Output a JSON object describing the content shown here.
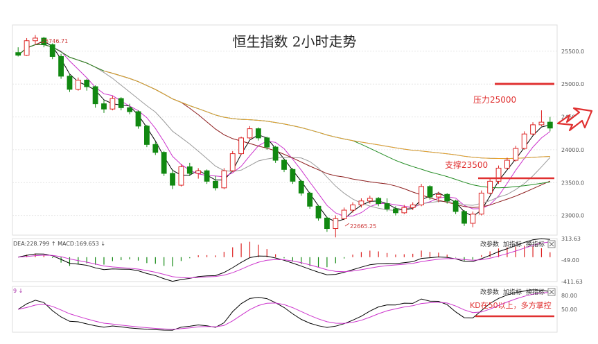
{
  "chart_data": {
    "type": "candlestick",
    "title": "恒生指数 2小时走势",
    "main": {
      "ylim": [
        22700,
        25900
      ],
      "yticks": [
        23000,
        23500,
        24000,
        24500,
        25000,
        25500
      ],
      "ytick_labels": [
        "23000.0",
        "23500.0",
        "24000.0",
        "24500.0",
        "25000.0",
        "25500.0"
      ],
      "high_label": "25746.71",
      "low_label": "22665.25",
      "annotations": [
        {
          "text": "压力25000",
          "value": 25000
        },
        {
          "text": "支撑23500",
          "value": 23500
        }
      ],
      "candles": [
        [
          25480,
          25560,
          25420,
          25440
        ],
        [
          25440,
          25700,
          25430,
          25660
        ],
        [
          25660,
          25746.71,
          25600,
          25700
        ],
        [
          25700,
          25720,
          25560,
          25600
        ],
        [
          25600,
          25620,
          25380,
          25420
        ],
        [
          25420,
          25460,
          25080,
          25120
        ],
        [
          25120,
          25160,
          24880,
          24920
        ],
        [
          24920,
          25100,
          24900,
          25060
        ],
        [
          25060,
          25080,
          24900,
          24960
        ],
        [
          24960,
          24980,
          24640,
          24700
        ],
        [
          24700,
          24760,
          24560,
          24620
        ],
        [
          24620,
          24820,
          24600,
          24780
        ],
        [
          24780,
          24800,
          24600,
          24640
        ],
        [
          24640,
          24700,
          24540,
          24580
        ],
        [
          24580,
          24600,
          24320,
          24360
        ],
        [
          24360,
          24380,
          24040,
          24080
        ],
        [
          24080,
          24120,
          23920,
          23960
        ],
        [
          23960,
          23980,
          23600,
          23640
        ],
        [
          23640,
          23700,
          23400,
          23460
        ],
        [
          23460,
          23780,
          23440,
          23740
        ],
        [
          23740,
          23800,
          23600,
          23640
        ],
        [
          23640,
          23720,
          23560,
          23680
        ],
        [
          23680,
          23700,
          23480,
          23520
        ],
        [
          23520,
          23600,
          23380,
          23420
        ],
        [
          23420,
          23720,
          23400,
          23680
        ],
        [
          23680,
          23980,
          23660,
          23940
        ],
        [
          23940,
          24200,
          23920,
          24180
        ],
        [
          24180,
          24360,
          24160,
          24320
        ],
        [
          24320,
          24340,
          24140,
          24180
        ],
        [
          24180,
          24200,
          24000,
          24040
        ],
        [
          24040,
          24060,
          23800,
          23840
        ],
        [
          23840,
          23860,
          23660,
          23700
        ],
        [
          23700,
          23720,
          23480,
          23520
        ],
        [
          23520,
          23540,
          23300,
          23340
        ],
        [
          23340,
          23360,
          23100,
          23140
        ],
        [
          23140,
          23160,
          22920,
          22960
        ],
        [
          22960,
          22980,
          22750,
          22800
        ],
        [
          22800,
          23000,
          22665.25,
          22950
        ],
        [
          22950,
          23120,
          22930,
          23080
        ],
        [
          23080,
          23200,
          23040,
          23160
        ],
        [
          23160,
          23260,
          23120,
          23220
        ],
        [
          23220,
          23300,
          23180,
          23260
        ],
        [
          23260,
          23280,
          23140,
          23180
        ],
        [
          23180,
          23260,
          23060,
          23100
        ],
        [
          23100,
          23140,
          23000,
          23040
        ],
        [
          23040,
          23160,
          23020,
          23120
        ],
        [
          23120,
          23200,
          23080,
          23160
        ],
        [
          23160,
          23480,
          23140,
          23440
        ],
        [
          23440,
          23460,
          23240,
          23280
        ],
        [
          23280,
          23360,
          23200,
          23320
        ],
        [
          23320,
          23340,
          23180,
          23220
        ],
        [
          23220,
          23240,
          23020,
          23060
        ],
        [
          23060,
          23080,
          22840,
          22880
        ],
        [
          22880,
          23060,
          22820,
          23020
        ],
        [
          23020,
          23380,
          23000,
          23340
        ],
        [
          23340,
          23560,
          23320,
          23520
        ],
        [
          23520,
          23760,
          23480,
          23720
        ],
        [
          23720,
          23880,
          23700,
          23840
        ],
        [
          23840,
          24060,
          23820,
          24020
        ],
        [
          24020,
          24280,
          24000,
          24240
        ],
        [
          24240,
          24420,
          24220,
          24380
        ],
        [
          24380,
          24600,
          24360,
          24420
        ],
        [
          24420,
          24500,
          24280,
          24330
        ]
      ],
      "ma_colors": [
        "#000000",
        "#cc33cc",
        "#999999",
        "#8b1a1a",
        "#228b22",
        "#1e90ff",
        "#f0a020"
      ]
    },
    "macd": {
      "label": "DEA:228.799 ↑ MACD:169.653 ↓",
      "ylim": [
        -411.63,
        313.63
      ],
      "yticks": [
        313.63,
        -49.0,
        -411.63
      ],
      "ytick_labels": [
        "313.63",
        "-49.00",
        "-411.63"
      ]
    },
    "kd": {
      "label": "9 ↓",
      "ylim": [
        0,
        100
      ],
      "yticks": [
        80,
        50
      ],
      "ytick_labels": [
        "80.00",
        "50.00"
      ],
      "annotation": {
        "text": "KD在50以上，多方掌控",
        "value": 50
      }
    },
    "panel_controls": [
      "改参数",
      "加指标",
      "换指标"
    ],
    "close_icon": "close-icon",
    "colors": {
      "up": "#dd2222",
      "down": "#118811",
      "annot": "#e03030"
    }
  }
}
